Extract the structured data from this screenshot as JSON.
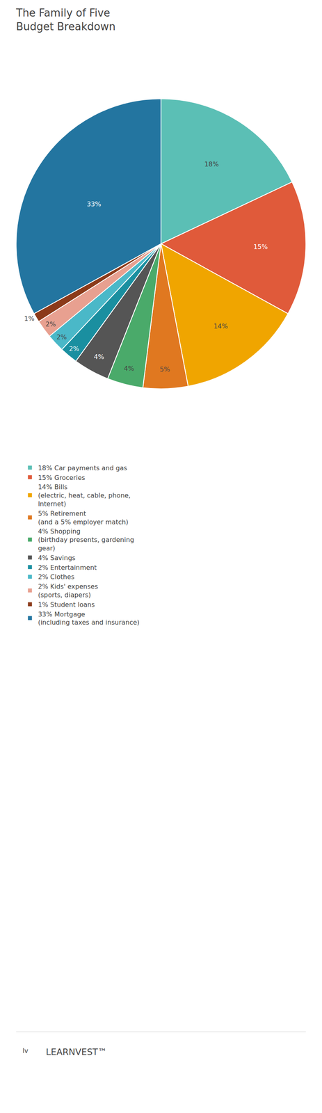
{
  "chart_data": {
    "type": "pie",
    "title": "The Family of Five\nBudget Breakdown",
    "categories": [
      "18% Car payments and gas",
      "15% Groceries",
      "14% Bills\n(electric, heat, cable, phone,\nInternet)",
      "5% Retirement\n(and a 5% employer match)",
      "4% Shopping\n(birthday presents, gardening\ngear)",
      "4% Savings",
      "2% Entertainment",
      "2% Clothes",
      "2% Kids' expenses\n(sports, diapers)",
      "1% Student loans",
      "33% Mortgage\n(including taxes and insurance)"
    ],
    "values": [
      18,
      15,
      14,
      5,
      4,
      4,
      2,
      2,
      2,
      1,
      33
    ],
    "value_labels": [
      "18%",
      "15%",
      "14%",
      "5%",
      "4%",
      "4%",
      "2%",
      "2%",
      "2%",
      "1%",
      "33%"
    ],
    "data_labels": true,
    "colors": [
      "#5bbfb5",
      "#e05a3a",
      "#f0a500",
      "#e07820",
      "#4aaa6a",
      "#555555",
      "#1a8fa0",
      "#4ab8c8",
      "#e8a090",
      "#8b3a1a",
      "#2375a0"
    ],
    "legend": "bottom",
    "annotations": [
      "lv",
      "LEARNVEST™"
    ]
  }
}
